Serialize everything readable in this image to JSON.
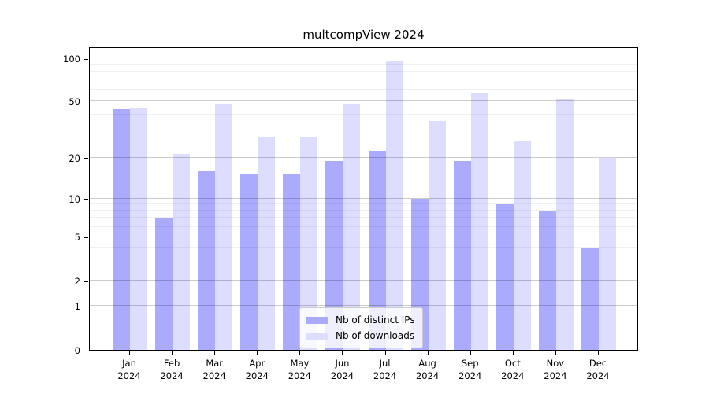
{
  "title": "multcompView 2024",
  "legend": {
    "items": [
      {
        "label": "Nb of distinct IPs",
        "color": "#aaaaff"
      },
      {
        "label": "Nb of downloads",
        "color": "#ddddff"
      }
    ]
  },
  "chart_data": {
    "type": "bar",
    "title": "multcompView 2024",
    "categories": [
      "Jan",
      "Feb",
      "Mar",
      "Apr",
      "May",
      "Jun",
      "Jul",
      "Aug",
      "Sep",
      "Oct",
      "Nov",
      "Dec"
    ],
    "x_year": "2024",
    "series": [
      {
        "name": "Nb of distinct IPs",
        "color": "#aaaaff",
        "values": [
          44,
          7,
          16,
          15,
          15,
          19,
          22,
          10,
          19,
          9,
          8,
          4
        ]
      },
      {
        "name": "Nb of downloads",
        "color": "#ddddff",
        "values": [
          45,
          21,
          48,
          28,
          28,
          48,
          95,
          36,
          57,
          26,
          52,
          20
        ]
      }
    ],
    "y_scale": "log10(value+1)",
    "y_ticks": [
      0,
      1,
      2,
      5,
      10,
      20,
      50,
      100
    ],
    "y_minor_gridlines": [
      3,
      4,
      6,
      7,
      8,
      9,
      30,
      40,
      60,
      70,
      80,
      90
    ],
    "ylim": [
      0,
      120
    ],
    "grid": "on",
    "legend_position": "bottom-center-inside",
    "xlabel": "",
    "ylabel": ""
  }
}
